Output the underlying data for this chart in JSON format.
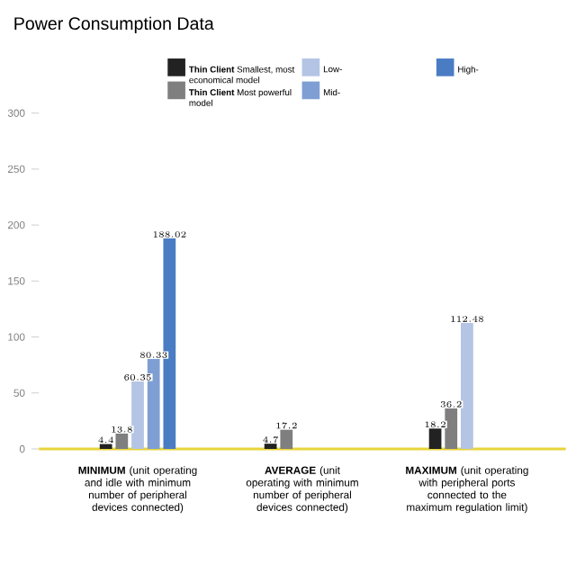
{
  "chart_data": {
    "type": "bar",
    "title": "Power Consumption Data",
    "categories": [
      "**MINIMUM** (unit operating and idle with minimum number of peripheral devices connected)",
      "**AVERAGE** (unit operating with minimum number of peripheral devices connected)",
      "**MAXIMUM** (unit operating with peripheral ports connected to the maximum regulation limit)"
    ],
    "series": [
      {
        "name": "**Thin Client** Smallest, most economical model",
        "color": "#222222",
        "values": [
          4.4,
          4.7,
          18.2
        ]
      },
      {
        "name": "**Thin Client** Most powerful model",
        "color": "#7f7f7f",
        "values": [
          13.8,
          17.2,
          36.2
        ]
      },
      {
        "name": "Low-",
        "color": "#b4c4e4",
        "values": [
          60.35,
          null,
          112.48
        ]
      },
      {
        "name": "Mid-",
        "color": "#7f9fd4",
        "values": [
          80.33,
          null,
          null
        ]
      },
      {
        "name": "High-",
        "color": "#4a7cc4",
        "values": [
          188.02,
          null,
          null
        ]
      }
    ],
    "ylim": [
      0,
      300
    ],
    "yticks": [
      0,
      50,
      100,
      150,
      200,
      250,
      300
    ],
    "data_labels": true,
    "grid": false,
    "legend": "top right"
  }
}
